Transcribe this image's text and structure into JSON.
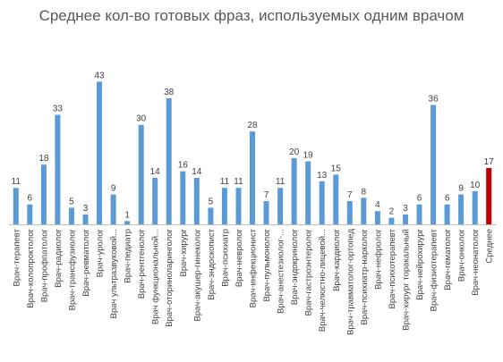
{
  "chart_data": {
    "type": "bar",
    "title": "Среднее кол-во готовых фраз, используемых одним врачом",
    "xlabel": "",
    "ylabel": "",
    "ylim": [
      0,
      45
    ],
    "grid": false,
    "legend": "none",
    "colors": {
      "default": "#5B9BD5",
      "highlight": "#C00000",
      "label": "#404040",
      "axis": "#BFBFBF"
    },
    "highlight_index": 34,
    "categories": [
      "Врач-терапевт",
      "Врач-колопроктолог",
      "Врач-профпатолог",
      "Врач-радиолог",
      "Врач-трансфузиолог",
      "Врач-ревматолог",
      "Врач-уролог",
      "Врач ультразвуковой...",
      "Врач-педиатр",
      "Врач-рентгенолог",
      "Врач функциональной...",
      "Врач-оториноларинголог",
      "Врач-хирург",
      "Врач-акушер-гинеколог",
      "Врач-эндоскопист",
      "Врач-психиатр",
      "Врач-невролог",
      "Врач-инфекционист",
      "Врач-пульмонолог",
      "Врач-анестезиолог-...",
      "Врач-эндокринолог",
      "Врач-гастроэнтеролог",
      "Врач-челюстно-лицевой...",
      "Врач-кардиолог",
      "Врач-травматолог-ортопед",
      "Врач-психиатр-нарколог",
      "Врач-нефролог",
      "Врач-психотерапевт",
      "Врач-хирург торакальный",
      "Врач-нейрохирург",
      "Врач-физиотерапевт",
      "Врач-гематолог",
      "Врач-онколог",
      "Врач-неонатолог",
      "Среднее"
    ],
    "values": [
      11,
      6,
      18,
      33,
      5,
      3,
      43,
      9,
      1,
      30,
      14,
      38,
      16,
      14,
      5,
      11,
      11,
      28,
      7,
      11,
      20,
      19,
      13,
      15,
      7,
      8,
      4,
      2,
      3,
      6,
      36,
      6,
      9,
      10,
      17
    ]
  }
}
